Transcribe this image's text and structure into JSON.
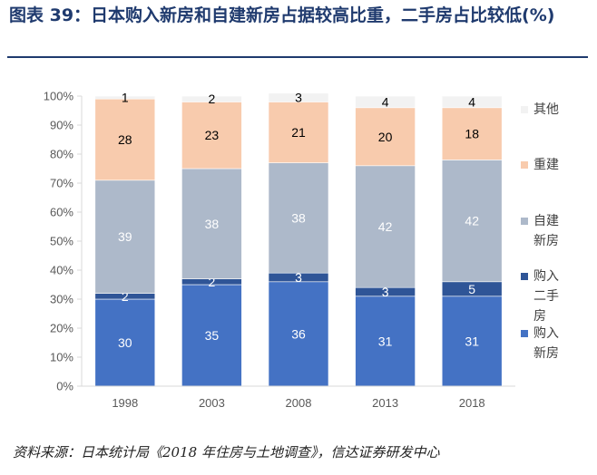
{
  "figure": {
    "title": "图表 39：日本购入新房和自建新房占据较高比重，二手房占比较低(%)",
    "source": "资料来源：日本统计局《2018 年住房与土地调查》，信达证券研发中心"
  },
  "colors": {
    "新房": "#4472c4",
    "二手房": "#2f5597",
    "自建新房": "#adb9ca",
    "重建": "#f8cbad",
    "其他": "#f2f2f2",
    "axis": "#d9d9d9",
    "tick_text": "#595959"
  },
  "chart_data": {
    "type": "bar",
    "stacked": true,
    "percent": true,
    "categories": [
      "1998",
      "2003",
      "2008",
      "2013",
      "2018"
    ],
    "series": [
      {
        "name": "购入新房",
        "key": "新房",
        "values": [
          30,
          35,
          36,
          31,
          31
        ],
        "label_color": "#ffffff"
      },
      {
        "name": "购入二手房",
        "key": "二手房",
        "values": [
          2,
          2,
          3,
          3,
          5
        ],
        "label_color": "#ffffff"
      },
      {
        "name": "自建新房",
        "key": "自建新房",
        "values": [
          39,
          38,
          38,
          42,
          42
        ],
        "label_color": "#ffffff"
      },
      {
        "name": "重建",
        "key": "重建",
        "values": [
          28,
          23,
          21,
          20,
          18
        ],
        "label_color": "#000000"
      },
      {
        "name": "其他",
        "key": "其他",
        "values": [
          1,
          2,
          3,
          4,
          4
        ],
        "label_color": "#000000"
      }
    ],
    "ylim": [
      0,
      100
    ],
    "yticks": [
      "0%",
      "10%",
      "20%",
      "30%",
      "40%",
      "50%",
      "60%",
      "70%",
      "80%",
      "90%",
      "100%"
    ],
    "legend": {
      "position": "right",
      "entries": [
        {
          "key": "其他",
          "lines": [
            "其他"
          ]
        },
        {
          "key": "重建",
          "lines": [
            "重建"
          ]
        },
        {
          "key": "自建新房",
          "lines": [
            "自建",
            "新房"
          ]
        },
        {
          "key": "二手房",
          "lines": [
            "购入",
            "二手",
            "房"
          ]
        },
        {
          "key": "新房",
          "lines": [
            "购入",
            "新房"
          ]
        }
      ]
    },
    "grid": false
  }
}
